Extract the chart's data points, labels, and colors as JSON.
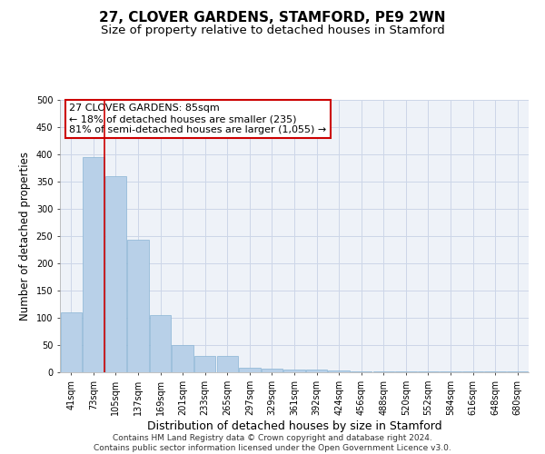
{
  "title": "27, CLOVER GARDENS, STAMFORD, PE9 2WN",
  "subtitle": "Size of property relative to detached houses in Stamford",
  "xlabel": "Distribution of detached houses by size in Stamford",
  "ylabel": "Number of detached properties",
  "footer_line1": "Contains HM Land Registry data © Crown copyright and database right 2024.",
  "footer_line2": "Contains public sector information licensed under the Open Government Licence v3.0.",
  "annotation_line1": "27 CLOVER GARDENS: 85sqm",
  "annotation_line2": "← 18% of detached houses are smaller (235)",
  "annotation_line3": "81% of semi-detached houses are larger (1,055) →",
  "categories": [
    "41sqm",
    "73sqm",
    "105sqm",
    "137sqm",
    "169sqm",
    "201sqm",
    "233sqm",
    "265sqm",
    "297sqm",
    "329sqm",
    "361sqm",
    "392sqm",
    "424sqm",
    "456sqm",
    "488sqm",
    "520sqm",
    "552sqm",
    "584sqm",
    "616sqm",
    "648sqm",
    "680sqm"
  ],
  "bar_values": [
    110,
    395,
    360,
    243,
    105,
    50,
    30,
    30,
    8,
    7,
    5,
    5,
    3,
    2,
    1,
    2,
    1,
    1,
    1,
    1,
    2
  ],
  "bar_color": "#b8d0e8",
  "bar_edge_color": "#8ab4d4",
  "red_line_color": "#cc0000",
  "vline_x": 1.5,
  "ylim": [
    0,
    500
  ],
  "yticks": [
    0,
    50,
    100,
    150,
    200,
    250,
    300,
    350,
    400,
    450,
    500
  ],
  "bg_color": "#eef2f8",
  "grid_color": "#ccd6e8",
  "annotation_box_color": "#ffffff",
  "annotation_box_edge": "#cc0000",
  "title_fontsize": 11,
  "subtitle_fontsize": 9.5,
  "ylabel_fontsize": 8.5,
  "xlabel_fontsize": 9,
  "tick_fontsize": 7,
  "annotation_fontsize": 8,
  "footer_fontsize": 6.5
}
